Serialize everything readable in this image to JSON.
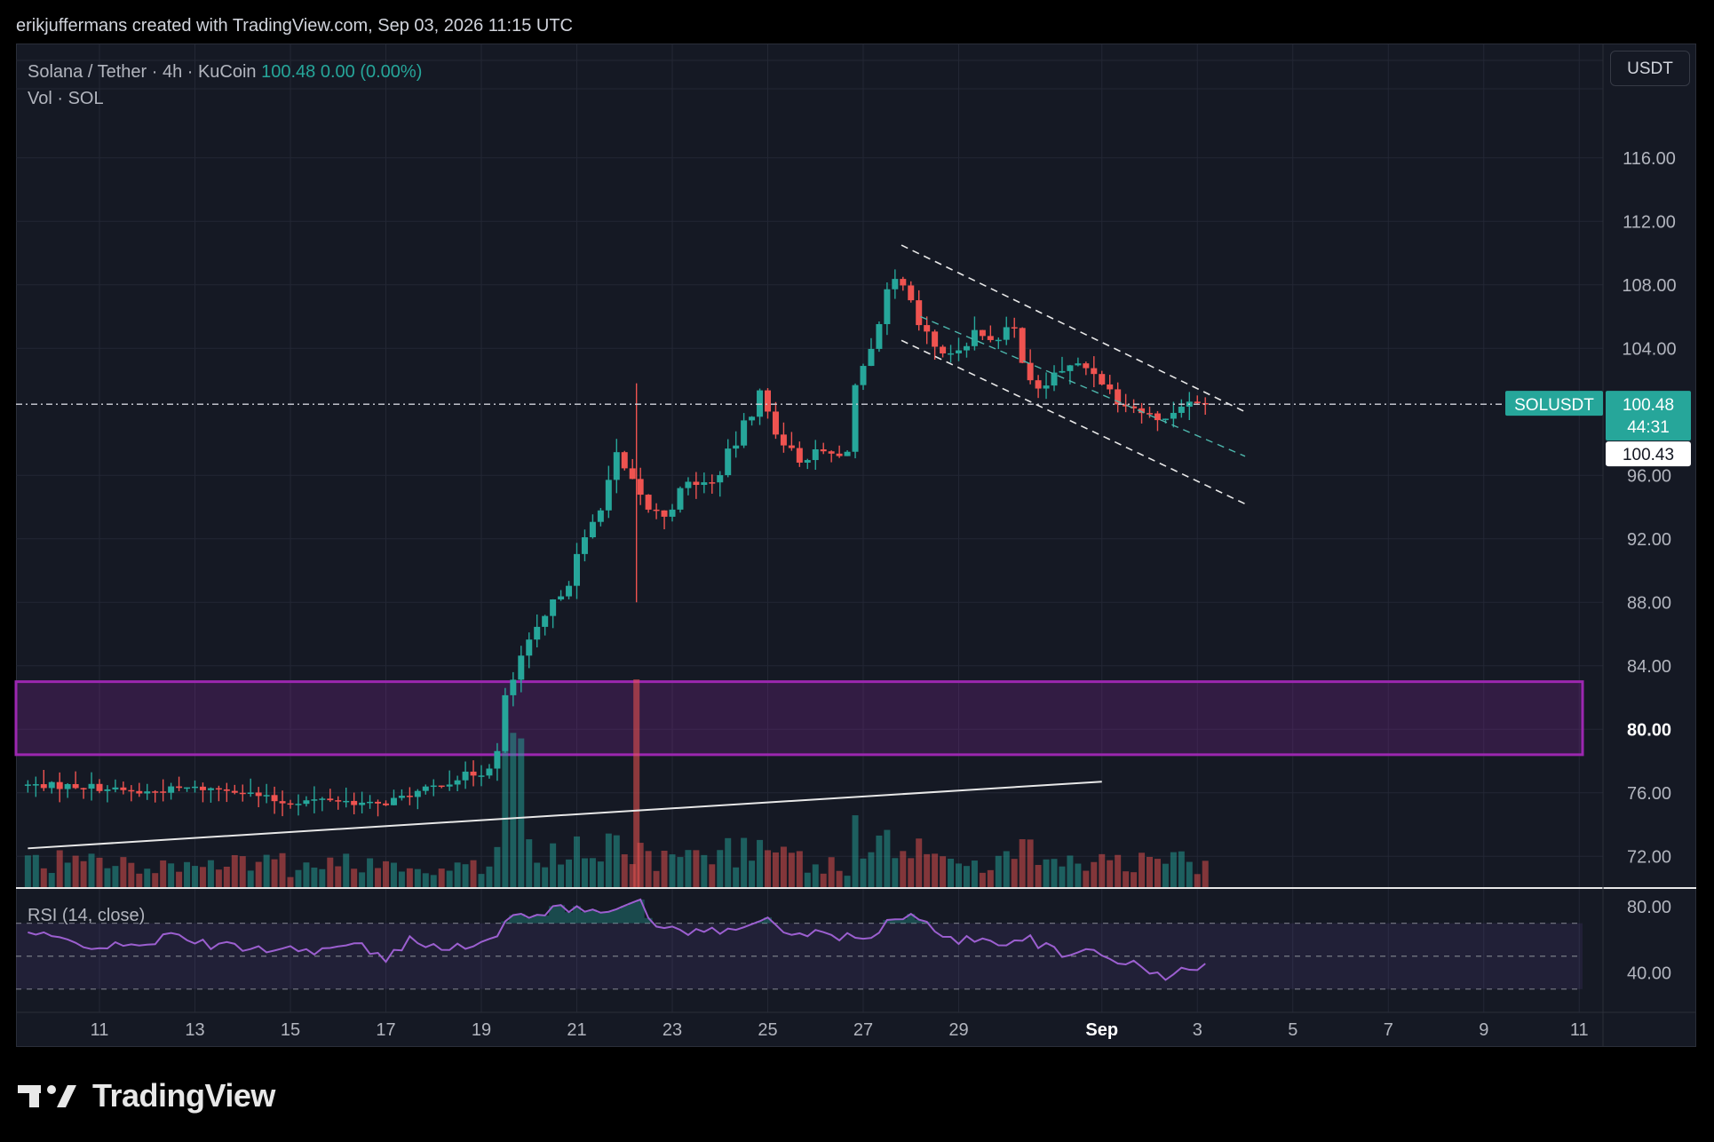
{
  "header": {
    "text": "erikjuffermans created with TradingView.com, Sep 03, 2026 11:15 UTC"
  },
  "legend": {
    "symbol": "Solana / Tether · 4h · KuCoin",
    "price": "100.48",
    "change": "0.00 (0.00%)",
    "volume_label": "Vol · SOL"
  },
  "currency_button": "USDT",
  "rsi_label": "RSI (14, close)",
  "brand": {
    "name": "TradingView",
    "logo": "tradingview-logo-icon"
  },
  "colors": {
    "up": "#26a69a",
    "down": "#ef5350",
    "zone": "#9c27b0",
    "rsi": "#9c5fd0",
    "background": "#151924"
  },
  "chart_data": [
    {
      "type": "candlestick",
      "symbol": "SOLUSDT",
      "interval": "4h",
      "exchange": "KuCoin",
      "ylim": [
        70,
        122
      ],
      "y_ticks": [
        "116.00",
        "112.00",
        "108.00",
        "104.00",
        "96.00",
        "92.00",
        "88.00",
        "84.00",
        "80.00",
        "76.00",
        "72.00"
      ],
      "x_ticks": [
        "11",
        "13",
        "15",
        "17",
        "19",
        "21",
        "23",
        "25",
        "27",
        "29",
        "Sep",
        "3",
        "5",
        "7",
        "9",
        "11"
      ],
      "x_tick_days": [
        11,
        13,
        15,
        17,
        19,
        21,
        23,
        25,
        27,
        29,
        32,
        34,
        36,
        38,
        40,
        42
      ],
      "last_price": {
        "symbol": "SOLUSDT",
        "price": "100.48",
        "countdown": "44:31",
        "bid": "100.43"
      },
      "zone": {
        "low": 78.4,
        "high": 83.0
      },
      "trendline": {
        "x": [
          9.5,
          32.0
        ],
        "y": [
          72.5,
          76.7
        ]
      },
      "channel": {
        "upper": {
          "x": [
            27.8,
            35.0
          ],
          "y": [
            110.5,
            100.0
          ]
        },
        "middle": {
          "x": [
            28.2,
            35.0
          ],
          "y": [
            106.0,
            97.2
          ]
        },
        "lower": {
          "x": [
            27.8,
            35.0
          ],
          "y": [
            104.5,
            94.2
          ]
        }
      },
      "price_anchors": [
        [
          9.5,
          76.5
        ],
        [
          11,
          76.4
        ],
        [
          12,
          76.0
        ],
        [
          13,
          76.3
        ],
        [
          14,
          76.2
        ],
        [
          15,
          75.4
        ],
        [
          16,
          75.6
        ],
        [
          17,
          75.2
        ],
        [
          18,
          76.2
        ],
        [
          18.7,
          77.0
        ],
        [
          19.2,
          77.3
        ],
        [
          19.5,
          78.5
        ],
        [
          19.7,
          82.0
        ],
        [
          20,
          84.5
        ],
        [
          20.5,
          87.0
        ],
        [
          21,
          89.5
        ],
        [
          21.5,
          93.0
        ],
        [
          22,
          97.0
        ],
        [
          22.3,
          95.5
        ],
        [
          22.6,
          94.0
        ],
        [
          23,
          93.5
        ],
        [
          23.5,
          95.5
        ],
        [
          24,
          95.5
        ],
        [
          24.5,
          98.0
        ],
        [
          25,
          101.0
        ],
        [
          25.4,
          98.5
        ],
        [
          25.8,
          97.0
        ],
        [
          26.3,
          97.5
        ],
        [
          26.8,
          97.0
        ],
        [
          27,
          101.5
        ],
        [
          27.4,
          104.0
        ],
        [
          27.7,
          107.5
        ],
        [
          27.9,
          108.5
        ],
        [
          28.3,
          105.5
        ],
        [
          28.7,
          104.0
        ],
        [
          29,
          103.5
        ],
        [
          29.5,
          105.0
        ],
        [
          30,
          104.5
        ],
        [
          30.3,
          105.5
        ],
        [
          30.8,
          101.0
        ],
        [
          31.2,
          102.5
        ],
        [
          31.7,
          103.0
        ],
        [
          32,
          102.5
        ],
        [
          32.5,
          100.8
        ],
        [
          33,
          100.0
        ],
        [
          33.5,
          99.5
        ],
        [
          33.8,
          100.5
        ],
        [
          34.1,
          100.5
        ],
        [
          34.3,
          100.48
        ]
      ],
      "volume_scale_max": 10
    },
    {
      "type": "line",
      "name": "RSI (14, close)",
      "ylim": [
        30,
        86
      ],
      "y_ticks": [
        "80.00",
        "40.00"
      ],
      "bands": [
        70,
        50,
        30
      ],
      "anchors": [
        [
          9.5,
          64
        ],
        [
          10.5,
          58
        ],
        [
          11.5,
          55
        ],
        [
          12.5,
          62
        ],
        [
          13.5,
          56
        ],
        [
          14.5,
          55
        ],
        [
          15.5,
          54
        ],
        [
          16.5,
          56
        ],
        [
          17,
          47
        ],
        [
          17.5,
          60
        ],
        [
          18.5,
          55
        ],
        [
          19,
          58
        ],
        [
          19.3,
          60
        ],
        [
          19.6,
          74
        ],
        [
          20.5,
          78
        ],
        [
          21.5,
          79
        ],
        [
          22.3,
          83
        ],
        [
          22.6,
          69
        ],
        [
          23.5,
          65
        ],
        [
          24.5,
          66
        ],
        [
          25,
          74
        ],
        [
          25.5,
          64
        ],
        [
          26.5,
          62
        ],
        [
          27,
          60
        ],
        [
          27.5,
          70
        ],
        [
          28,
          74
        ],
        [
          28.5,
          66
        ],
        [
          29,
          60
        ],
        [
          30,
          59
        ],
        [
          30.5,
          60
        ],
        [
          31,
          53
        ],
        [
          31.2,
          48
        ],
        [
          31.7,
          55
        ],
        [
          32,
          52
        ],
        [
          32.5,
          46
        ],
        [
          33,
          41
        ],
        [
          33.4,
          36
        ],
        [
          33.8,
          43
        ],
        [
          34.3,
          46
        ]
      ]
    }
  ]
}
